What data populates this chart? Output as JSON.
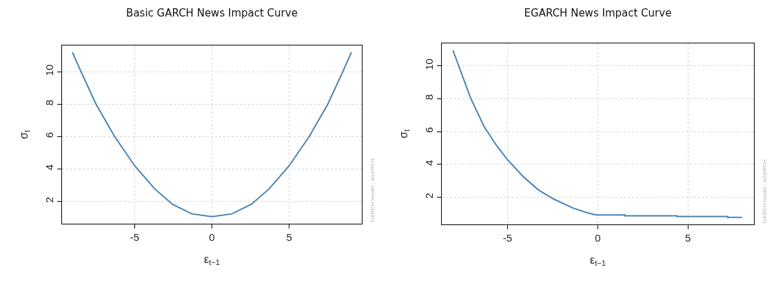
{
  "chart_data": [
    {
      "type": "line",
      "title": "Basic GARCH News Impact Curve",
      "xlabel": "ε$_{t−1}$",
      "ylabel": "σ$_{t}$",
      "x": [
        -9.03,
        -8.47,
        -7.5,
        -6.3,
        -5,
        -3.7,
        -2.57,
        -1.3,
        0,
        1.3,
        2.57,
        3.7,
        5,
        6.3,
        7.5,
        8.47,
        9.03
      ],
      "series": [
        {
          "color": "#4682b4",
          "values": [
            11.2,
            10.0,
            8.0,
            6.0,
            4.2,
            2.77,
            1.83,
            1.23,
            1.06,
            1.23,
            1.83,
            2.77,
            4.2,
            6.0,
            8.0,
            10.0,
            11.2
          ]
        }
      ],
      "xlim": [
        -9.7,
        9.7
      ],
      "xticks": [
        -5,
        0,
        5
      ],
      "ylim": [
        0.62,
        11.62
      ],
      "yticks": [
        2,
        4,
        6,
        8,
        10
      ],
      "grid": true,
      "marker": "none",
      "line_style": "solid",
      "annotations": [
        "GARCH model : sGARCH"
      ]
    },
    {
      "type": "line",
      "title": "EGARCH News Impact Curve",
      "xlabel": "ε$_{t−1}$",
      "ylabel": "σ$_{t}$",
      "x": [
        -8.03,
        -7.05,
        -6.3,
        -5.61,
        -5,
        -4.11,
        -3.29,
        -2.47,
        -1.38,
        -0.56,
        -0.08,
        1.5,
        1.5,
        4.4,
        4.4,
        7.2,
        7.2,
        8.0
      ],
      "series": [
        {
          "color": "#4682b4",
          "values": [
            10.95,
            8.04,
            6.3,
            5.15,
            4.28,
            3.23,
            2.45,
            1.91,
            1.35,
            1.05,
            0.93,
            0.93,
            0.87,
            0.87,
            0.83,
            0.83,
            0.78,
            0.78
          ]
        }
      ],
      "xlim": [
        -8.65,
        8.66
      ],
      "xticks": [
        -5,
        0,
        5
      ],
      "ylim": [
        0.35,
        11.37
      ],
      "yticks": [
        2,
        4,
        6,
        8,
        10
      ],
      "grid": true,
      "marker": "none",
      "line_style": "solid",
      "annotations": [
        "GARCH model : eGARCH"
      ]
    }
  ]
}
